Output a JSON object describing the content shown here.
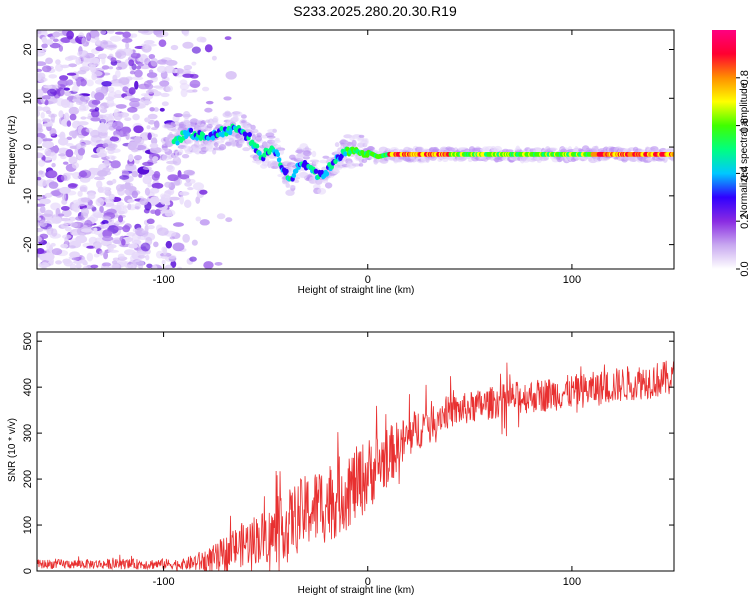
{
  "title": "S233.2025.280.20.30.R19",
  "chart_data": [
    {
      "type": "heatmap",
      "name": "spectrogram",
      "xlabel": "Height of straight line (km)",
      "ylabel": "Frequency (Hz)",
      "xlim": [
        -162,
        150
      ],
      "ylim": [
        -25,
        24
      ],
      "xticks": [
        -100,
        0,
        100
      ],
      "yticks": [
        -20,
        -10,
        0,
        10,
        20
      ],
      "colorbar": {
        "label": "Normalized spectral amplitude",
        "range": [
          0,
          1
        ],
        "ticks": [
          0.0,
          0.2,
          0.4,
          0.6,
          0.8
        ],
        "tick_labels": [
          "0.0",
          "0.2",
          "0.4",
          "0.6",
          "0.8"
        ],
        "colors": [
          "#ffffff",
          "#c8a8f0",
          "#8a2be2",
          "#3000ff",
          "#00c8ff",
          "#00ff80",
          "#40ff00",
          "#ffff00",
          "#ff9000",
          "#ff0030",
          "#ff0080"
        ]
      },
      "trace": [
        {
          "x": -95,
          "y": 1
        },
        {
          "x": -88,
          "y": 3
        },
        {
          "x": -80,
          "y": 2
        },
        {
          "x": -72,
          "y": 3
        },
        {
          "x": -65,
          "y": 4
        },
        {
          "x": -58,
          "y": 2
        },
        {
          "x": -52,
          "y": -2
        },
        {
          "x": -46,
          "y": 0
        },
        {
          "x": -42,
          "y": -4
        },
        {
          "x": -38,
          "y": -7
        },
        {
          "x": -33,
          "y": -3
        },
        {
          "x": -28,
          "y": -4
        },
        {
          "x": -24,
          "y": -6
        },
        {
          "x": -20,
          "y": -5
        },
        {
          "x": -15,
          "y": -2
        },
        {
          "x": -10,
          "y": -1
        },
        {
          "x": -5,
          "y": -1
        },
        {
          "x": 0,
          "y": -1
        },
        {
          "x": 5,
          "y": -2
        },
        {
          "x": 10,
          "y": -1.5
        },
        {
          "x": 20,
          "y": -1.5
        },
        {
          "x": 40,
          "y": -1.5
        },
        {
          "x": 60,
          "y": -1.5
        },
        {
          "x": 80,
          "y": -1.5
        },
        {
          "x": 100,
          "y": -1.5
        },
        {
          "x": 120,
          "y": -1.5
        },
        {
          "x": 150,
          "y": -1.5
        }
      ],
      "scatter_extent": {
        "x": [
          -162,
          -90
        ],
        "y": [
          -25,
          24
        ]
      }
    },
    {
      "type": "line",
      "name": "snr",
      "xlabel": "Height of straight line (km)",
      "ylabel": "SNR (10 * v/v)",
      "xlim": [
        -162,
        150
      ],
      "ylim": [
        0,
        520
      ],
      "xticks": [
        -100,
        0,
        100
      ],
      "yticks": [
        0,
        100,
        200,
        300,
        400,
        500
      ],
      "color": "#e83030",
      "trend": [
        {
          "x": -162,
          "y": 15
        },
        {
          "x": -120,
          "y": 15
        },
        {
          "x": -90,
          "y": 15
        },
        {
          "x": -75,
          "y": 25
        },
        {
          "x": -65,
          "y": 50
        },
        {
          "x": -55,
          "y": 70
        },
        {
          "x": -45,
          "y": 80
        },
        {
          "x": -35,
          "y": 120
        },
        {
          "x": -25,
          "y": 140
        },
        {
          "x": -15,
          "y": 160
        },
        {
          "x": -5,
          "y": 190
        },
        {
          "x": 5,
          "y": 230
        },
        {
          "x": 15,
          "y": 270
        },
        {
          "x": 25,
          "y": 310
        },
        {
          "x": 35,
          "y": 340
        },
        {
          "x": 50,
          "y": 355
        },
        {
          "x": 70,
          "y": 375
        },
        {
          "x": 90,
          "y": 385
        },
        {
          "x": 110,
          "y": 395
        },
        {
          "x": 130,
          "y": 410
        },
        {
          "x": 150,
          "y": 420
        }
      ],
      "noise": [
        {
          "x": -162,
          "y": 10
        },
        {
          "x": -90,
          "y": 12
        },
        {
          "x": -70,
          "y": 40
        },
        {
          "x": -40,
          "y": 70
        },
        {
          "x": -20,
          "y": 90
        },
        {
          "x": 0,
          "y": 80
        },
        {
          "x": 20,
          "y": 50
        },
        {
          "x": 40,
          "y": 35
        },
        {
          "x": 150,
          "y": 40
        }
      ]
    }
  ]
}
